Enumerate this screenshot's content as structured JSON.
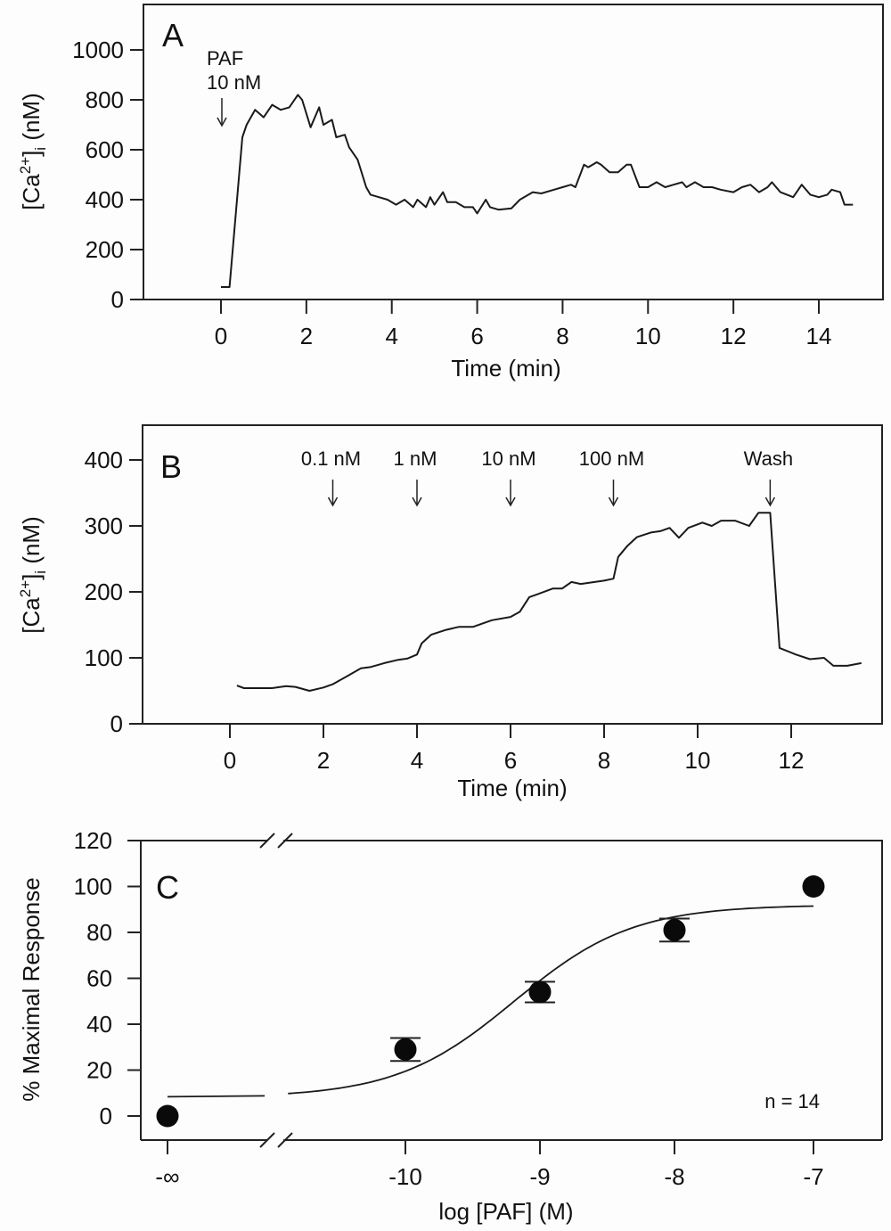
{
  "chart_data": [
    {
      "panel": "A",
      "type": "line",
      "xlabel": "Time (min)",
      "ylabel_main": "[Ca",
      "ylabel_sup": "2+",
      "ylabel_tail": "]",
      "ylabel_sub": "i",
      "ylabel_unit": " (nM)",
      "xlim": [
        -2.0,
        15.5
      ],
      "ylim": [
        0,
        1100
      ],
      "xticks": [
        0,
        2,
        4,
        6,
        8,
        10,
        12,
        14
      ],
      "xtick_labels": [
        "0",
        "2",
        "4",
        "6",
        "8",
        "10",
        "12",
        "14"
      ],
      "yticks": [
        0,
        200,
        400,
        600,
        800,
        1000
      ],
      "ytick_labels": [
        "0",
        "200",
        "400",
        "600",
        "800",
        "1000"
      ],
      "annotations": [
        {
          "lines": [
            "PAF",
            "10 nM"
          ],
          "x": 0
        }
      ],
      "series": [
        {
          "name": "[Ca2+]i",
          "x": [
            0,
            0.2,
            0.5,
            0.6,
            0.8,
            1.0,
            1.2,
            1.4,
            1.6,
            1.8,
            1.9,
            2.1,
            2.3,
            2.4,
            2.6,
            2.7,
            2.9,
            3.0,
            3.2,
            3.4,
            3.5,
            3.7,
            3.9,
            4.1,
            4.3,
            4.5,
            4.6,
            4.8,
            4.9,
            5.0,
            5.2,
            5.3,
            5.5,
            5.7,
            5.9,
            6.0,
            6.2,
            6.3,
            6.5,
            6.8,
            7.0,
            7.3,
            7.5,
            7.8,
            8.0,
            8.2,
            8.3,
            8.5,
            8.6,
            8.8,
            8.9,
            9.1,
            9.3,
            9.5,
            9.6,
            9.8,
            10.0,
            10.2,
            10.4,
            10.6,
            10.8,
            10.9,
            11.1,
            11.3,
            11.5,
            11.7,
            12.0,
            12.2,
            12.4,
            12.6,
            12.8,
            12.9,
            13.1,
            13.4,
            13.6,
            13.8,
            14.0,
            14.2,
            14.3,
            14.5,
            14.6,
            14.8
          ],
          "y": [
            50,
            50,
            650,
            700,
            760,
            730,
            780,
            760,
            770,
            820,
            800,
            690,
            770,
            700,
            720,
            650,
            660,
            610,
            560,
            450,
            420,
            410,
            400,
            380,
            400,
            370,
            400,
            370,
            410,
            380,
            430,
            390,
            390,
            370,
            370,
            345,
            400,
            370,
            360,
            365,
            400,
            430,
            425,
            440,
            450,
            460,
            450,
            540,
            530,
            550,
            540,
            510,
            510,
            540,
            540,
            450,
            450,
            470,
            450,
            460,
            470,
            450,
            470,
            450,
            450,
            440,
            430,
            450,
            460,
            430,
            450,
            470,
            430,
            410,
            460,
            420,
            410,
            420,
            440,
            430,
            380,
            380
          ]
        }
      ]
    },
    {
      "panel": "B",
      "type": "line",
      "xlabel": "Time (min)",
      "ylabel_main": "[Ca",
      "ylabel_sup": "2+",
      "ylabel_tail": "]",
      "ylabel_sub": "i",
      "ylabel_unit": " (nM)",
      "xlim": [
        -1.9,
        13.7
      ],
      "ylim": [
        0,
        445
      ],
      "xticks": [
        0,
        2,
        4,
        6,
        8,
        10,
        12
      ],
      "xtick_labels": [
        "0",
        "2",
        "4",
        "6",
        "8",
        "10",
        "12"
      ],
      "yticks": [
        0,
        100,
        200,
        300,
        400
      ],
      "ytick_labels": [
        "0",
        "100",
        "200",
        "300",
        "400"
      ],
      "annotations": [
        {
          "label": "0.1 nM",
          "x": 2.2
        },
        {
          "label": "1 nM",
          "x": 4.0
        },
        {
          "label": "10 nM",
          "x": 6.0
        },
        {
          "label": "100 nM",
          "x": 8.2
        },
        {
          "label": "Wash",
          "x": 11.55
        }
      ],
      "series": [
        {
          "name": "[Ca2+]i",
          "x": [
            0.15,
            0.3,
            0.6,
            0.9,
            1.2,
            1.4,
            1.7,
            2.0,
            2.2,
            2.5,
            2.8,
            3.0,
            3.3,
            3.6,
            3.8,
            4.0,
            4.1,
            4.3,
            4.6,
            4.9,
            5.2,
            5.6,
            6.0,
            6.2,
            6.4,
            6.6,
            6.9,
            7.1,
            7.3,
            7.5,
            7.8,
            8.0,
            8.2,
            8.3,
            8.5,
            8.7,
            9.0,
            9.2,
            9.4,
            9.6,
            9.8,
            10.1,
            10.3,
            10.5,
            10.8,
            11.1,
            11.3,
            11.55,
            11.75,
            12.1,
            12.4,
            12.7,
            12.9,
            13.2,
            13.5
          ],
          "y": [
            58,
            54,
            54,
            54,
            57,
            56,
            50,
            55,
            60,
            72,
            84,
            86,
            92,
            97,
            99,
            105,
            122,
            135,
            142,
            147,
            147,
            157,
            162,
            170,
            192,
            197,
            205,
            205,
            215,
            212,
            215,
            217,
            220,
            253,
            270,
            283,
            290,
            292,
            297,
            282,
            297,
            305,
            300,
            308,
            308,
            300,
            320,
            320,
            115,
            105,
            98,
            100,
            88,
            88,
            92
          ]
        }
      ]
    },
    {
      "panel": "C",
      "type": "scatter",
      "xlabel": "log [PAF] (M)",
      "ylabel": "% Maximal Response",
      "ylim": [
        -10,
        120
      ],
      "xticks_labels": [
        "-∞",
        "-10",
        "-9",
        "-8",
        "-7"
      ],
      "yticks": [
        0,
        20,
        40,
        60,
        80,
        100,
        120
      ],
      "ytick_labels": [
        "0",
        "20",
        "40",
        "60",
        "80",
        "100",
        "120"
      ],
      "axis_break": true,
      "annotation": "n = 14",
      "points": [
        {
          "x_label": "-∞",
          "x": null,
          "y": 0,
          "err": 0
        },
        {
          "x_label": "-10",
          "x": -10,
          "y": 29,
          "err": 5
        },
        {
          "x_label": "-9",
          "x": -9,
          "y": 54,
          "err": 4.5
        },
        {
          "x_label": "-8",
          "x": -8,
          "y": 81,
          "err": 5
        },
        {
          "x_label": "-7",
          "x": -7,
          "y": 100,
          "err": 0
        }
      ],
      "fit": {
        "type": "sigmoid",
        "bottom": 8,
        "top": 92,
        "log_ec50": -9.2,
        "hill": 1.0,
        "x_range": [
          -11.5,
          -7
        ]
      }
    }
  ]
}
